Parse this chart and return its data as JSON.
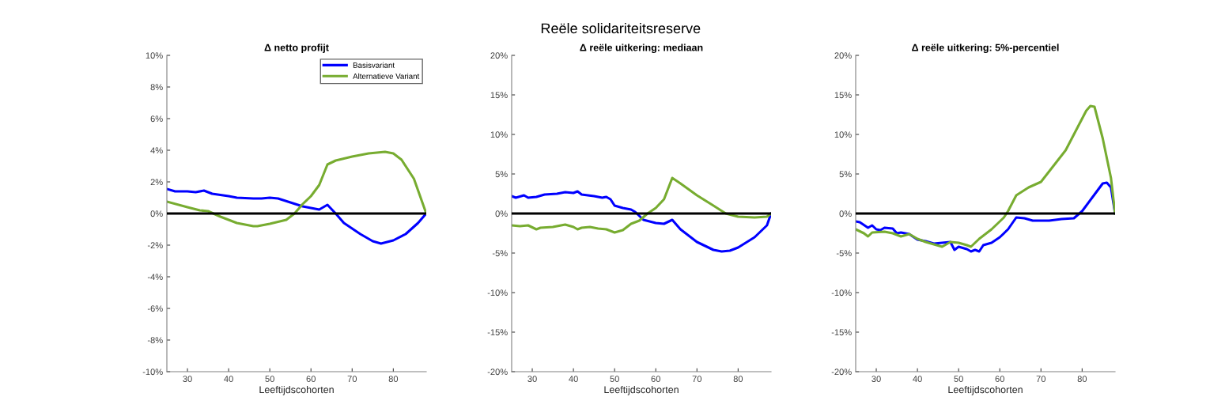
{
  "chart_data": [
    {
      "type": "line",
      "subtitle": "Δ netto profijt",
      "xlabel": "Leeftijdscohorten",
      "xlim": [
        25,
        88
      ],
      "xticks": [
        30,
        40,
        50,
        60,
        70,
        80
      ],
      "ylim": [
        -10,
        10
      ],
      "yticks": [
        {
          "value": -10,
          "label": "-10%"
        },
        {
          "value": -8,
          "label": "-8%"
        },
        {
          "value": -6,
          "label": "-6%"
        },
        {
          "value": -4,
          "label": "-4%"
        },
        {
          "value": -2,
          "label": "-2%"
        },
        {
          "value": 0,
          "label": "0%"
        },
        {
          "value": 2,
          "label": "2%"
        },
        {
          "value": 4,
          "label": "4%"
        },
        {
          "value": 6,
          "label": "6%"
        },
        {
          "value": 8,
          "label": "8%"
        },
        {
          "value": 10,
          "label": "10%"
        }
      ],
      "legend": "top right",
      "grid": false,
      "ref_lines": [
        {
          "axis": "y",
          "value": 0,
          "color": "#000000"
        }
      ],
      "series": [
        {
          "name": "Basisvariant",
          "color": "#0000ff",
          "x": [
            25,
            27,
            30,
            32,
            34,
            36,
            40,
            42,
            46,
            48,
            50,
            52,
            55,
            58,
            62,
            64,
            66,
            68,
            72,
            75,
            77,
            80,
            83,
            86,
            88
          ],
          "values": [
            1.55,
            1.4,
            1.4,
            1.35,
            1.45,
            1.25,
            1.1,
            1.0,
            0.95,
            0.95,
            1.0,
            0.95,
            0.7,
            0.45,
            0.25,
            0.55,
            0.0,
            -0.6,
            -1.3,
            -1.75,
            -1.9,
            -1.7,
            -1.3,
            -0.6,
            0
          ]
        },
        {
          "name": "Alternatieve Variant",
          "color": "#77ac30",
          "x": [
            25,
            30,
            33,
            35,
            38,
            42,
            46,
            47,
            50,
            54,
            56,
            58,
            60,
            62,
            64,
            66,
            70,
            74,
            78,
            80,
            82,
            85,
            88
          ],
          "values": [
            0.75,
            0.4,
            0.2,
            0.15,
            -0.2,
            -0.6,
            -0.8,
            -0.8,
            -0.65,
            -0.4,
            0.0,
            0.6,
            1.1,
            1.8,
            3.1,
            3.35,
            3.6,
            3.8,
            3.9,
            3.8,
            3.4,
            2.2,
            0
          ]
        }
      ]
    },
    {
      "type": "line",
      "title": "Reële solidariteitsreserve",
      "subtitle": "Δ reële uitkering: mediaan",
      "xlabel": "Leeftijdscohorten",
      "xlim": [
        25,
        88
      ],
      "xticks": [
        30,
        40,
        50,
        60,
        70,
        80
      ],
      "ylim": [
        -20,
        20
      ],
      "yticks": [
        {
          "value": -20,
          "label": "-20%"
        },
        {
          "value": -15,
          "label": "-15%"
        },
        {
          "value": -10,
          "label": "-10%"
        },
        {
          "value": -5,
          "label": "-5%"
        },
        {
          "value": 0,
          "label": "0%"
        },
        {
          "value": 5,
          "label": "5%"
        },
        {
          "value": 10,
          "label": "10%"
        },
        {
          "value": 15,
          "label": "15%"
        },
        {
          "value": 20,
          "label": "20%"
        }
      ],
      "grid": false,
      "ref_lines": [
        {
          "axis": "y",
          "value": 0,
          "color": "#000000"
        }
      ],
      "series": [
        {
          "color": "#0000ff",
          "x": [
            25,
            26,
            28,
            29,
            31,
            33,
            36,
            38,
            40,
            41,
            42,
            45,
            47,
            48,
            49,
            50,
            52,
            54,
            55,
            57,
            60,
            62,
            64,
            66,
            70,
            74,
            76,
            78,
            80,
            84,
            87,
            88
          ],
          "values": [
            2.2,
            2.0,
            2.3,
            2.0,
            2.1,
            2.4,
            2.5,
            2.7,
            2.6,
            2.8,
            2.4,
            2.2,
            2.0,
            2.1,
            1.8,
            1.0,
            0.7,
            0.5,
            0.2,
            -0.8,
            -1.2,
            -1.3,
            -0.8,
            -2.0,
            -3.6,
            -4.6,
            -4.8,
            -4.7,
            -4.3,
            -3.0,
            -1.5,
            0
          ]
        },
        {
          "color": "#77ac30",
          "x": [
            25,
            27,
            29,
            31,
            32,
            35,
            38,
            40,
            41,
            42,
            44,
            46,
            48,
            50,
            52,
            54,
            56,
            58,
            60,
            62,
            64,
            66,
            70,
            74,
            77,
            80,
            84,
            87,
            88
          ],
          "values": [
            -1.5,
            -1.6,
            -1.5,
            -2.0,
            -1.8,
            -1.7,
            -1.4,
            -1.7,
            -2.0,
            -1.8,
            -1.7,
            -1.9,
            -2.0,
            -2.4,
            -2.1,
            -1.3,
            -0.9,
            0.0,
            0.7,
            1.8,
            4.5,
            3.8,
            2.3,
            1.0,
            0.0,
            -0.4,
            -0.5,
            -0.4,
            0
          ]
        }
      ]
    },
    {
      "type": "line",
      "subtitle": "Δ reële uitkering: 5%-percentiel",
      "xlabel": "Leeftijdscohorten",
      "xlim": [
        25,
        88
      ],
      "xticks": [
        30,
        40,
        50,
        60,
        70,
        80
      ],
      "ylim": [
        -20,
        20
      ],
      "yticks": [
        {
          "value": -20,
          "label": "-20%"
        },
        {
          "value": -15,
          "label": "-15%"
        },
        {
          "value": -10,
          "label": "-10%"
        },
        {
          "value": -5,
          "label": "-5%"
        },
        {
          "value": 0,
          "label": "0%"
        },
        {
          "value": 5,
          "label": "5%"
        },
        {
          "value": 10,
          "label": "10%"
        },
        {
          "value": 15,
          "label": "15%"
        },
        {
          "value": 20,
          "label": "20%"
        }
      ],
      "grid": false,
      "ref_lines": [
        {
          "axis": "y",
          "value": 0,
          "color": "#000000"
        }
      ],
      "series": [
        {
          "color": "#0000ff",
          "x": [
            25,
            26,
            28,
            29,
            30,
            31,
            32,
            34,
            35,
            36,
            38,
            40,
            42,
            44,
            46,
            48,
            49,
            50,
            52,
            53,
            54,
            55,
            56,
            58,
            60,
            62,
            64,
            66,
            68,
            72,
            75,
            78,
            80,
            83,
            85,
            86,
            87,
            88
          ],
          "values": [
            -1.0,
            -1.1,
            -1.8,
            -1.5,
            -2.0,
            -2.1,
            -1.8,
            -1.9,
            -2.5,
            -2.4,
            -2.6,
            -3.3,
            -3.5,
            -3.8,
            -3.7,
            -3.6,
            -4.6,
            -4.2,
            -4.5,
            -4.8,
            -4.6,
            -4.8,
            -4.0,
            -3.7,
            -3.0,
            -2.0,
            -0.5,
            -0.6,
            -0.9,
            -0.9,
            -0.7,
            -0.6,
            0.3,
            2.4,
            3.8,
            3.9,
            3.3,
            0
          ]
        },
        {
          "color": "#77ac30",
          "x": [
            25,
            27,
            28,
            29,
            32,
            34,
            36,
            38,
            40,
            42,
            44,
            46,
            48,
            50,
            52,
            53,
            55,
            58,
            61,
            62,
            64,
            67,
            70,
            73,
            76,
            79,
            81,
            82,
            83,
            85,
            87,
            88
          ],
          "values": [
            -2.0,
            -2.5,
            -2.9,
            -2.4,
            -2.3,
            -2.5,
            -2.9,
            -2.6,
            -3.2,
            -3.6,
            -3.9,
            -4.2,
            -3.6,
            -3.7,
            -4.0,
            -4.2,
            -3.2,
            -2.0,
            -0.5,
            0.3,
            2.3,
            3.3,
            4.0,
            6.0,
            8.0,
            11.0,
            13.0,
            13.6,
            13.5,
            9.5,
            4.5,
            0
          ]
        }
      ]
    }
  ]
}
